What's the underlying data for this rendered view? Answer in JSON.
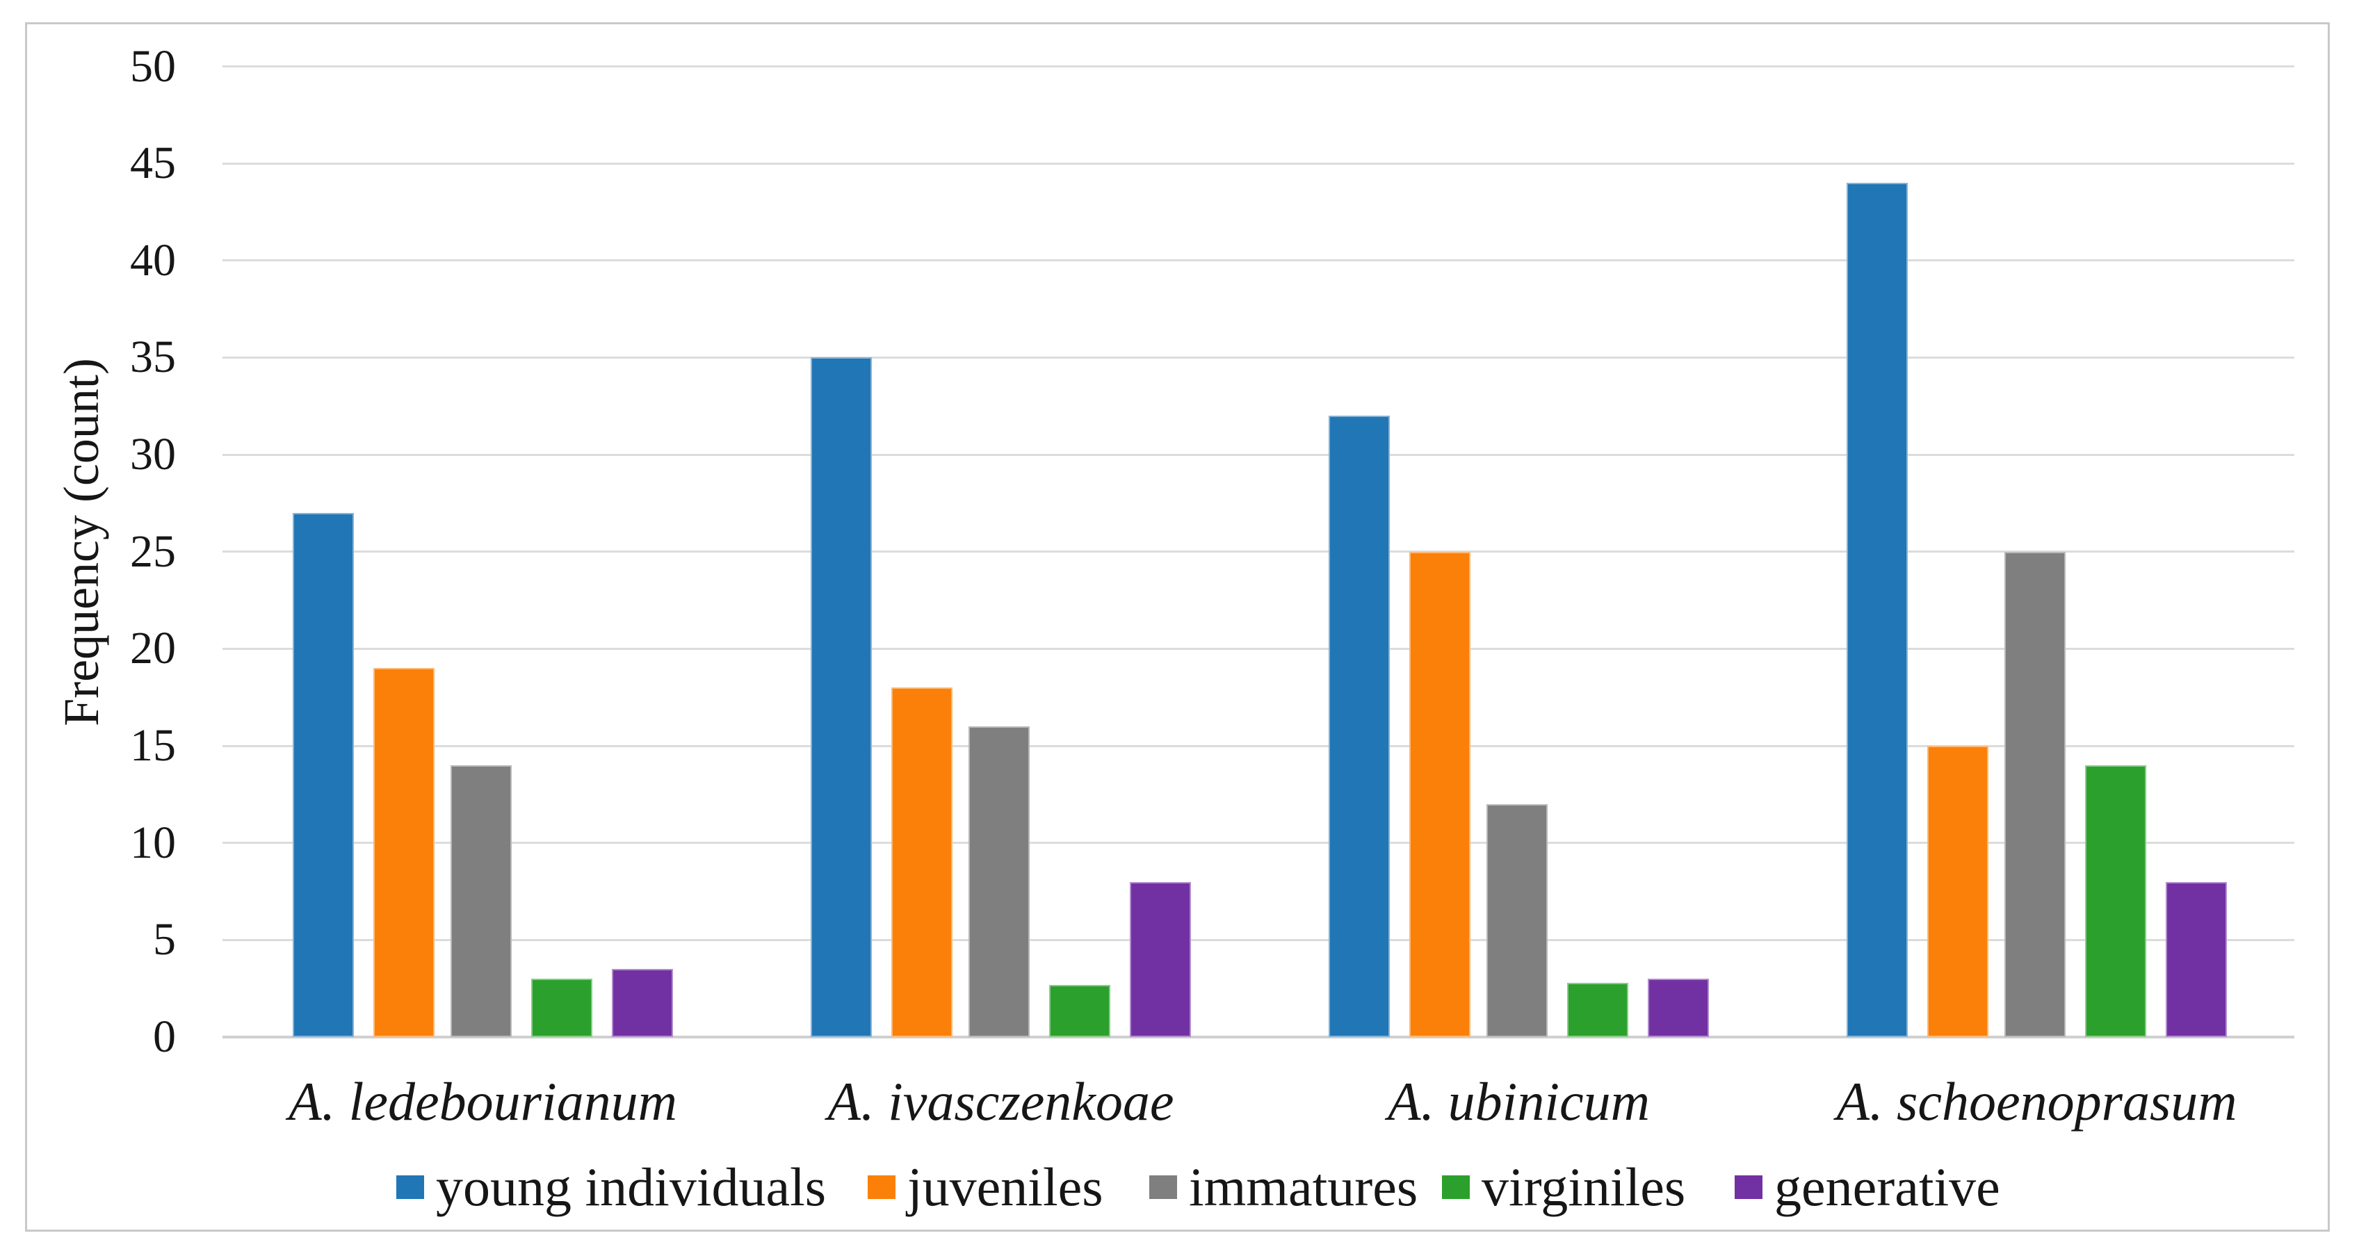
{
  "figure": {
    "ylabel": "Frequency (count)"
  },
  "style": {
    "gridline_color": "#DCDCDC",
    "baseline_color": "#D0D0D0",
    "frame_border_color": "#C9C9C9",
    "text_color": "#161616",
    "background": "#FFFFFF"
  },
  "chart_data": {
    "type": "bar",
    "title": "",
    "xlabel": "",
    "ylabel": "Frequency (count)",
    "categories": [
      "A. ledebourianum",
      "A. ivasczenkoae",
      "A. ubinicum",
      "A. schoenoprasum"
    ],
    "series": [
      {
        "name": "young individuals",
        "color": "#2176B5",
        "values": [
          27,
          35,
          32,
          44
        ]
      },
      {
        "name": "juveniles",
        "color": "#FB8009",
        "values": [
          19,
          18,
          25,
          15
        ]
      },
      {
        "name": "immatures",
        "color": "#7F7F7F",
        "values": [
          14,
          16,
          12,
          25
        ]
      },
      {
        "name": "virginiles",
        "color": "#2CA02C",
        "values": [
          3,
          2.7,
          2.8,
          14
        ]
      },
      {
        "name": "generative",
        "color": "#7231A2",
        "values": [
          3.5,
          8,
          3,
          8
        ]
      }
    ],
    "ylim": [
      0,
      50
    ],
    "ytick_step": 5,
    "yticks": [
      0,
      5,
      10,
      15,
      20,
      25,
      30,
      35,
      40,
      45,
      50
    ],
    "grid": true,
    "legend_position": "bottom"
  }
}
